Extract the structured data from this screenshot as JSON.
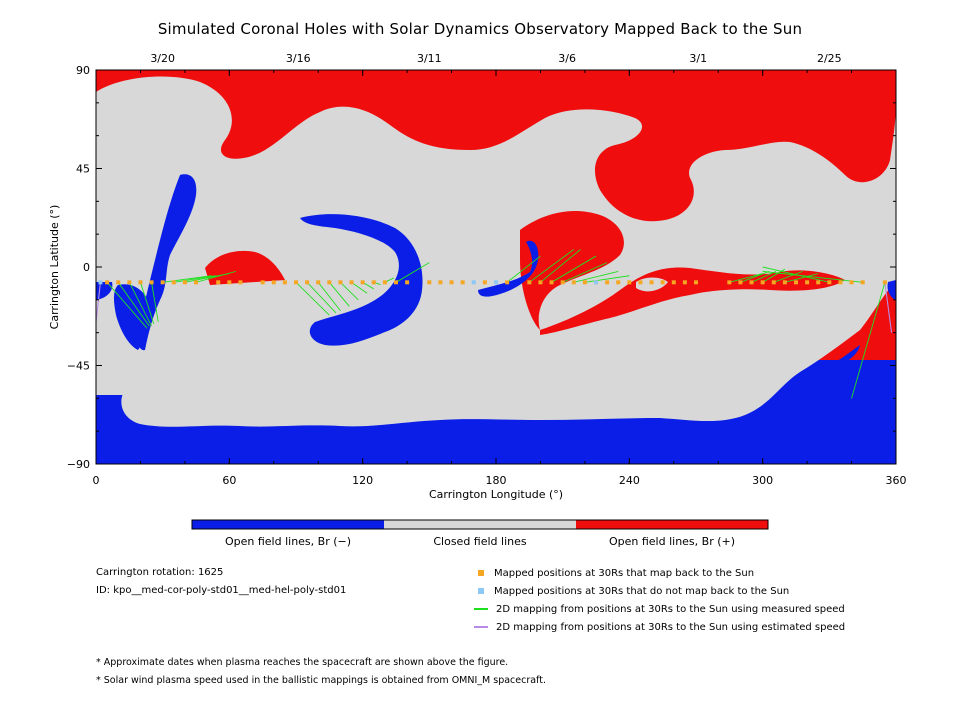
{
  "title": "Simulated Coronal Holes with Solar Dynamics Observatory Mapped Back to the Sun",
  "chart_data": {
    "type": "map",
    "xlabel": "Carrington Longitude (°)",
    "ylabel": "Carrington Latitude (°)",
    "xlim": [
      0,
      360
    ],
    "ylim": [
      -90,
      90
    ],
    "x_ticks": [
      "0",
      "60",
      "120",
      "180",
      "240",
      "300",
      "360"
    ],
    "y_ticks": [
      "90",
      "45",
      "0",
      "−45",
      "−90"
    ],
    "date_ticks": [
      {
        "lon": 30,
        "label": "3/20"
      },
      {
        "lon": 91,
        "label": "3/16"
      },
      {
        "lon": 150,
        "label": "3/11"
      },
      {
        "lon": 212,
        "label": "3/6"
      },
      {
        "lon": 271,
        "label": "3/1"
      },
      {
        "lon": 330,
        "label": "2/25"
      }
    ],
    "mapped_latitude": -7,
    "mapped_positions_lon": [
      5,
      10,
      15,
      20,
      25,
      30,
      35,
      40,
      45,
      55,
      60,
      65,
      75,
      80,
      85,
      90,
      95,
      100,
      105,
      110,
      115,
      120,
      125,
      130,
      135,
      140,
      150,
      155,
      160,
      165,
      175,
      185,
      195,
      200,
      205,
      210,
      215,
      220,
      225,
      230,
      235,
      240,
      245,
      250,
      255,
      260,
      265,
      270,
      285,
      290,
      295,
      300,
      305,
      310,
      315,
      320,
      325,
      330,
      335,
      340,
      345,
      355
    ],
    "unmapped_positions_lon": [
      2,
      170,
      180,
      225
    ],
    "measured_speed_links": [
      [
        5,
        23,
        -28
      ],
      [
        10,
        24,
        -27
      ],
      [
        15,
        25,
        -27
      ],
      [
        20,
        26,
        -26
      ],
      [
        25,
        28,
        -25
      ],
      [
        30,
        52,
        -4
      ],
      [
        35,
        54,
        -4
      ],
      [
        40,
        60,
        -3
      ],
      [
        45,
        63,
        -2
      ],
      [
        90,
        105,
        -22
      ],
      [
        95,
        108,
        -21
      ],
      [
        100,
        110,
        -20
      ],
      [
        105,
        114,
        -18
      ],
      [
        110,
        118,
        -15
      ],
      [
        115,
        122,
        -12
      ],
      [
        120,
        125,
        -10
      ],
      [
        125,
        128,
        -8
      ],
      [
        130,
        134,
        -5
      ],
      [
        135,
        150,
        2
      ],
      [
        185,
        200,
        5
      ],
      [
        195,
        215,
        8
      ],
      [
        200,
        218,
        8
      ],
      [
        205,
        225,
        5
      ],
      [
        210,
        230,
        2
      ],
      [
        215,
        235,
        -2
      ],
      [
        220,
        240,
        -4
      ],
      [
        285,
        300,
        -3
      ],
      [
        290,
        303,
        -2
      ],
      [
        295,
        306,
        -2
      ],
      [
        300,
        310,
        -1
      ],
      [
        305,
        318,
        -2
      ],
      [
        310,
        325,
        -3
      ],
      [
        330,
        300,
        0
      ],
      [
        345,
        300,
        -2
      ],
      [
        355,
        340,
        -60
      ]
    ],
    "estimated_speed_links": [
      [
        2,
        0,
        -25
      ],
      [
        355,
        358,
        -30
      ]
    ],
    "colorbar": [
      "Open field lines, Br (−)",
      "Closed field lines",
      "Open field lines, Br (+)"
    ],
    "legend": [
      {
        "label": "Mapped positions at 30Rs that map back to the Sun",
        "color": "#f5a623"
      },
      {
        "label": "Mapped positions at 30Rs that do not map back to the Sun",
        "color": "#8ec8f4"
      },
      {
        "label": "2D mapping from positions at 30Rs to the Sun using measured speed",
        "color": "#1fe01f"
      },
      {
        "label": "2D mapping from positions at 30Rs to the Sun using estimated speed",
        "color": "#b78be6"
      }
    ]
  },
  "colors": {
    "open_negative": "#0a1ee8",
    "closed": "#d8d8d8",
    "open_positive": "#f00d0d"
  },
  "info": {
    "rotation": "Carrington rotation: 1625",
    "id": "ID: kpo__med-cor-poly-std01__med-hel-poly-std01"
  },
  "notes": [
    "* Approximate dates when plasma reaches the spacecraft are shown above the figure.",
    "* Solar wind plasma speed used in the ballistic mappings is obtained from OMNI_M spacecraft."
  ]
}
